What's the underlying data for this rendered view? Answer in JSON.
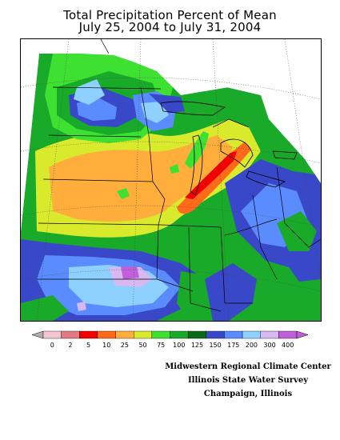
{
  "title": {
    "line1": "Total Precipitation Percent of Mean",
    "line2": "July 25, 2004 to July 31, 2004"
  },
  "legend": {
    "labels": [
      "0",
      "2",
      "5",
      "10",
      "25",
      "50",
      "75",
      "100",
      "125",
      "150",
      "175",
      "200",
      "300",
      "400"
    ],
    "colors": [
      "#f2c7d0",
      "#e07b85",
      "#f00000",
      "#ff6a1a",
      "#ffae3c",
      "#d9ea2c",
      "#3ee032",
      "#1aaa2a",
      "#0a6a1a",
      "#3848c8",
      "#5a8cff",
      "#8ed0ff",
      "#d8b8f0",
      "#c060d8"
    ]
  },
  "credits": {
    "line1": "Midwestern Regional Climate Center",
    "line2": "Illinois State Water Survey",
    "line3": "Champaign, Illinois"
  }
}
